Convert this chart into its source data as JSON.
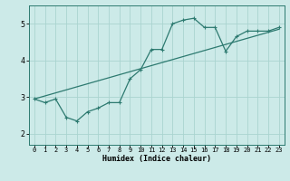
{
  "xlabel": "Humidex (Indice chaleur)",
  "ylabel": "",
  "bg_color": "#cceae8",
  "line_color": "#2d7a70",
  "grid_color": "#aad4d0",
  "xlim": [
    -0.5,
    23.5
  ],
  "ylim": [
    1.7,
    5.5
  ],
  "xticks": [
    0,
    1,
    2,
    3,
    4,
    5,
    6,
    7,
    8,
    9,
    10,
    11,
    12,
    13,
    14,
    15,
    16,
    17,
    18,
    19,
    20,
    21,
    22,
    23
  ],
  "yticks": [
    2,
    3,
    4,
    5
  ],
  "curve1_x": [
    0,
    1,
    2,
    3,
    4,
    5,
    6,
    7,
    8,
    9,
    10,
    11,
    12,
    13,
    14,
    15,
    16,
    17,
    18,
    19,
    20,
    21,
    22,
    23
  ],
  "curve1_y": [
    2.95,
    2.85,
    2.95,
    2.45,
    2.35,
    2.6,
    2.7,
    2.85,
    2.85,
    3.5,
    3.75,
    4.3,
    4.3,
    5.0,
    5.1,
    5.15,
    4.9,
    4.9,
    4.25,
    4.65,
    4.8,
    4.8,
    4.8,
    4.9
  ],
  "curve2_x": [
    0,
    23
  ],
  "curve2_y": [
    2.95,
    4.85
  ],
  "marker": "+"
}
